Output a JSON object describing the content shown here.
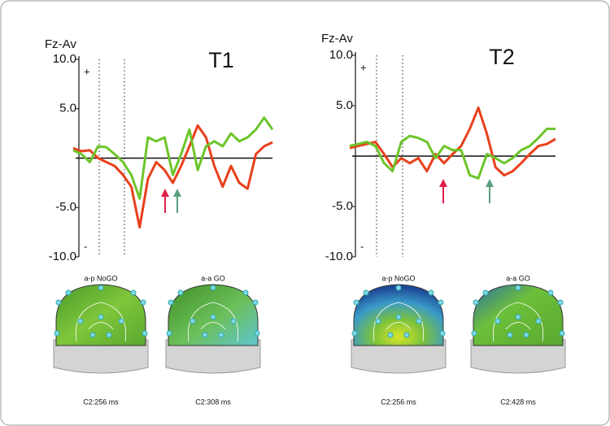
{
  "chart_data": [
    {
      "type": "line",
      "title": "T1",
      "ylabel": "Fz-Av",
      "plus_sign": "+",
      "minus_sign": "-",
      "ylim": [
        -10,
        10
      ],
      "yticks": [
        {
          "value": 10,
          "label": "10.0"
        },
        {
          "value": 5,
          "label": "5.0"
        },
        {
          "value": -5,
          "label": "-5.0"
        },
        {
          "value": -10,
          "label": "-10.0"
        }
      ],
      "series": [
        {
          "color": "#e8401c",
          "values": [
            1.0,
            0.7,
            0.8,
            0,
            -0.4,
            -0.8,
            -1.7,
            -2.9,
            -7.0,
            -2.1,
            -0.4,
            -1.2,
            -2.5,
            -0.8,
            1.2,
            3.3,
            2.1,
            -0.8,
            -2.9,
            -0.8,
            -2.5,
            -3.1,
            0.4,
            1.2,
            1.6
          ]
        },
        {
          "color": "#6cc52a",
          "values": [
            0.8,
            0.4,
            -0.4,
            1.2,
            1.1,
            0.4,
            -0.4,
            -1.7,
            -4.1,
            2.1,
            1.7,
            2.1,
            -1.7,
            0.4,
            2.9,
            -1.2,
            1.2,
            1.7,
            1.2,
            2.5,
            1.7,
            2.1,
            2.9,
            4.1,
            2.9
          ]
        }
      ]
    },
    {
      "type": "line",
      "title": "T2",
      "ylabel": "Fz-Av",
      "plus_sign": "+",
      "minus_sign": "-",
      "ylim": [
        -10,
        10
      ],
      "yticks": [
        {
          "value": 10,
          "label": "10.0"
        },
        {
          "value": 5,
          "label": "5.0"
        },
        {
          "value": -5,
          "label": "-5.0"
        },
        {
          "value": -10,
          "label": "-10.0"
        }
      ],
      "series": [
        {
          "color": "#e8401c",
          "values": [
            0.8,
            1.0,
            1.2,
            1.4,
            0.2,
            -1.1,
            -0.2,
            -0.7,
            -0.2,
            -1.5,
            0.2,
            -0.7,
            0.2,
            1.0,
            2.7,
            4.8,
            2.2,
            -1.1,
            -1.9,
            -1.5,
            -0.7,
            0.2,
            1.0,
            1.2,
            1.7
          ]
        },
        {
          "color": "#6cc52a",
          "values": [
            1.0,
            1.2,
            1.4,
            1.0,
            -0.7,
            -1.5,
            1.4,
            2.0,
            1.8,
            1.4,
            -0.2,
            1.0,
            0.6,
            0.6,
            -1.9,
            -2.2,
            0.2,
            -0.2,
            -0.7,
            -0.2,
            0.6,
            1.0,
            1.8,
            2.7,
            2.7
          ]
        }
      ]
    }
  ],
  "topomaps": [
    {
      "label": "a-p NoGO",
      "time": "C2:256 ms"
    },
    {
      "label": "a-a GO",
      "time": "C2:308 ms"
    },
    {
      "label": "a-p NoGO",
      "time": "C2:256 ms"
    },
    {
      "label": "a-a GO",
      "time": "C2:428 ms"
    }
  ]
}
